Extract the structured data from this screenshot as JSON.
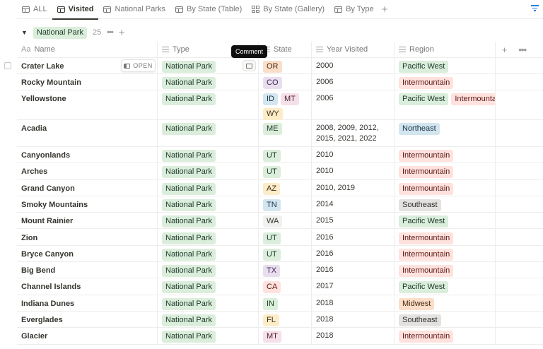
{
  "tabs": [
    {
      "label": "ALL",
      "icon": "table"
    },
    {
      "label": "Visited",
      "icon": "table",
      "active": true
    },
    {
      "label": "National Parks",
      "icon": "table"
    },
    {
      "label": "By State (Table)",
      "icon": "table"
    },
    {
      "label": "By State (Gallery)",
      "icon": "gallery"
    },
    {
      "label": "By Type",
      "icon": "table"
    }
  ],
  "group": {
    "label": "National Park",
    "count": "25"
  },
  "columns": {
    "name": "Name",
    "name_icon": "Aa",
    "type": "Type",
    "state": "State",
    "year": "Year Visited",
    "region": "Region"
  },
  "open_label": "OPEN",
  "tooltip": "Comment",
  "colors": {
    "green": [
      "#dbeddb",
      "#1c3829"
    ],
    "orange": [
      "#fadec9",
      "#49290e"
    ],
    "purple": [
      "#e8deee",
      "#412454"
    ],
    "blue": [
      "#d3e5ef",
      "#183347"
    ],
    "pink": [
      "#f5e0e9",
      "#4c2337"
    ],
    "yellow": [
      "#fdecc8",
      "#402c1b"
    ],
    "red": [
      "#ffe2dd",
      "#5d1715"
    ],
    "gray": [
      "#e3e2e0",
      "#32302c"
    ],
    "default": [
      "#f1f1ef",
      "#37352f"
    ]
  },
  "rows": [
    {
      "name": "Crater Lake",
      "type": "National Park",
      "states": [
        [
          "OR",
          "orange"
        ]
      ],
      "year": "2000",
      "regions": [
        [
          "Pacific West",
          "green"
        ]
      ]
    },
    {
      "name": "Rocky Mountain",
      "type": "National Park",
      "states": [
        [
          "CO",
          "purple"
        ]
      ],
      "year": "2006",
      "regions": [
        [
          "Intermountain",
          "red"
        ]
      ]
    },
    {
      "name": "Yellowstone",
      "type": "National Park",
      "states": [
        [
          "ID",
          "blue"
        ],
        [
          "MT",
          "pink"
        ],
        [
          "WY",
          "yellow"
        ]
      ],
      "year": "2006",
      "regions": [
        [
          "Pacific West",
          "green"
        ],
        [
          "Intermountain",
          "red"
        ]
      ]
    },
    {
      "name": "Acadia",
      "type": "National Park",
      "states": [
        [
          "ME",
          "green"
        ]
      ],
      "year": "2008, 2009, 2012, 2015, 2021, 2022",
      "regions": [
        [
          "Northeast",
          "blue"
        ]
      ]
    },
    {
      "name": "Canyonlands",
      "type": "National Park",
      "states": [
        [
          "UT",
          "green"
        ]
      ],
      "year": "2010",
      "regions": [
        [
          "Intermountain",
          "red"
        ]
      ]
    },
    {
      "name": "Arches",
      "type": "National Park",
      "states": [
        [
          "UT",
          "green"
        ]
      ],
      "year": "2010",
      "regions": [
        [
          "Intermountain",
          "red"
        ]
      ]
    },
    {
      "name": "Grand Canyon",
      "type": "National Park",
      "states": [
        [
          "AZ",
          "yellow"
        ]
      ],
      "year": "2010, 2019",
      "regions": [
        [
          "Intermountain",
          "red"
        ]
      ]
    },
    {
      "name": "Smoky Mountains",
      "type": "National Park",
      "states": [
        [
          "TN",
          "blue"
        ]
      ],
      "year": "2014",
      "regions": [
        [
          "Southeast",
          "gray"
        ]
      ]
    },
    {
      "name": "Mount Rainier",
      "type": "National Park",
      "states": [
        [
          "WA",
          "default"
        ]
      ],
      "year": "2015",
      "regions": [
        [
          "Pacific West",
          "green"
        ]
      ]
    },
    {
      "name": "Zion",
      "type": "National Park",
      "states": [
        [
          "UT",
          "green"
        ]
      ],
      "year": "2016",
      "regions": [
        [
          "Intermountain",
          "red"
        ]
      ]
    },
    {
      "name": "Bryce Canyon",
      "type": "National Park",
      "states": [
        [
          "UT",
          "green"
        ]
      ],
      "year": "2016",
      "regions": [
        [
          "Intermountain",
          "red"
        ]
      ]
    },
    {
      "name": "Big Bend",
      "type": "National Park",
      "states": [
        [
          "TX",
          "purple"
        ]
      ],
      "year": "2016",
      "regions": [
        [
          "Intermountain",
          "red"
        ]
      ]
    },
    {
      "name": "Channel Islands",
      "type": "National Park",
      "states": [
        [
          "CA",
          "red"
        ]
      ],
      "year": "2017",
      "regions": [
        [
          "Pacific West",
          "green"
        ]
      ]
    },
    {
      "name": "Indiana Dunes",
      "type": "National Park",
      "states": [
        [
          "IN",
          "green"
        ]
      ],
      "year": "2018",
      "regions": [
        [
          "Midwest",
          "orange"
        ]
      ]
    },
    {
      "name": "Everglades",
      "type": "National Park",
      "states": [
        [
          "FL",
          "yellow"
        ]
      ],
      "year": "2018",
      "regions": [
        [
          "Southeast",
          "gray"
        ]
      ]
    },
    {
      "name": "Glacier",
      "type": "National Park",
      "states": [
        [
          "MT",
          "pink"
        ]
      ],
      "year": "2018",
      "regions": [
        [
          "Intermountain",
          "red"
        ]
      ]
    }
  ]
}
